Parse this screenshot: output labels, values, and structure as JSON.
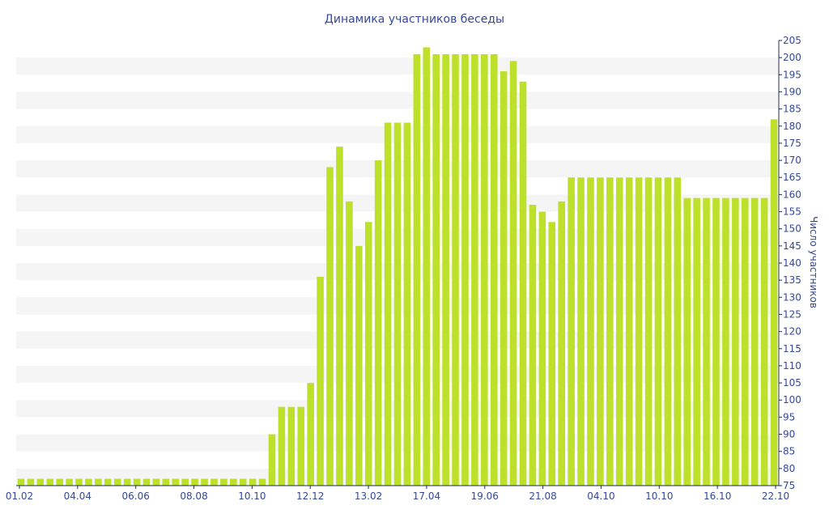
{
  "chart_data": {
    "type": "bar",
    "title": "Динамика участников беседы",
    "xlabel": "",
    "ylabel": "Число участников",
    "ylim": [
      75,
      205
    ],
    "y_ticks": [
      75,
      80,
      85,
      90,
      95,
      100,
      105,
      110,
      115,
      120,
      125,
      130,
      135,
      140,
      145,
      150,
      155,
      160,
      165,
      170,
      175,
      180,
      185,
      190,
      195,
      200,
      205
    ],
    "x_tick_labels": [
      "01.02",
      "04.04",
      "06.06",
      "08.08",
      "10.10",
      "12.12",
      "13.02",
      "17.04",
      "19.06",
      "21.08",
      "04.10",
      "10.10",
      "16.10",
      "22.10"
    ],
    "grid": "horizontal alternating bands",
    "y_axis_position": "right",
    "legend": "none",
    "colors": {
      "bar": "#bde12b",
      "band": "#f5f5f5",
      "text": "#34489a",
      "axis": "#1e2b5c"
    },
    "values": [
      77,
      77,
      77,
      77,
      77,
      77,
      77,
      77,
      77,
      77,
      77,
      77,
      77,
      77,
      77,
      77,
      77,
      77,
      77,
      77,
      77,
      77,
      77,
      77,
      77,
      77,
      90,
      98,
      98,
      98,
      105,
      136,
      168,
      174,
      158,
      145,
      152,
      170,
      181,
      181,
      181,
      201,
      203,
      201,
      201,
      201,
      201,
      201,
      201,
      201,
      196,
      199,
      193,
      157,
      155,
      152,
      158,
      165,
      165,
      165,
      165,
      165,
      165,
      165,
      165,
      165,
      165,
      165,
      165,
      159,
      159,
      159,
      159,
      159,
      159,
      159,
      159,
      159,
      182
    ]
  }
}
